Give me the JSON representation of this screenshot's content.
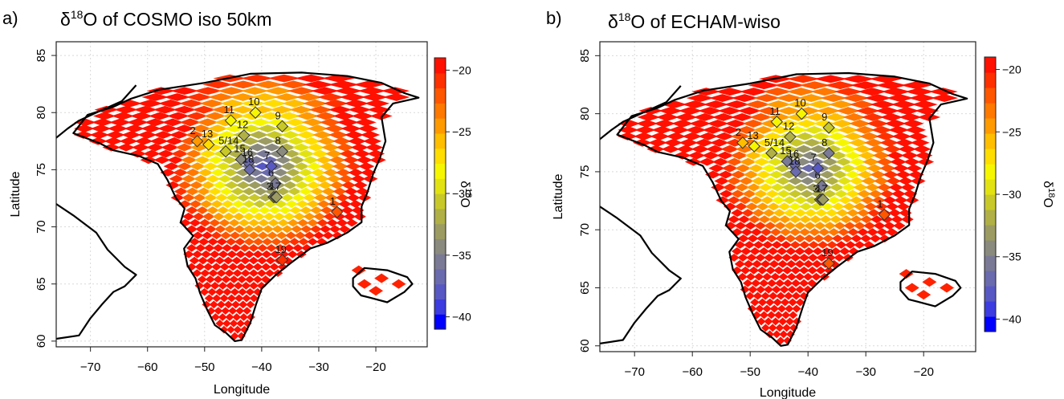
{
  "panels": [
    {
      "id": "a",
      "letter": "a)",
      "title_prefix": "δ",
      "title_sup": "18",
      "title_rest": "O of COSMO  iso  50km"
    },
    {
      "id": "b",
      "letter": "b)",
      "title_prefix": "δ",
      "title_sup": "18",
      "title_rest": "O of ECHAM-wiso"
    }
  ],
  "axes": {
    "xlabel": "Longitude",
    "ylabel": "Latitude",
    "x_ticks": [
      -70,
      -60,
      -50,
      -40,
      -30,
      -20
    ],
    "y_ticks": [
      60,
      65,
      70,
      75,
      80,
      85
    ],
    "xlim": [
      -76,
      -11
    ],
    "ylim": [
      59.5,
      86.2
    ],
    "grid": true
  },
  "colorbar": {
    "label_prefix": "δ",
    "label_sup": "18",
    "label_rest": "O",
    "ticks": [
      -20,
      -25,
      -30,
      -35,
      -40
    ],
    "range": [
      -41,
      -19
    ],
    "colors": [
      "#0000ff",
      "#3c3ce0",
      "#5858c4",
      "#6a6aae",
      "#7a7a96",
      "#8a8a7e",
      "#9c9c62",
      "#b0b046",
      "#c8c82a",
      "#e2e212",
      "#f6f600",
      "#ffdd00",
      "#ffbe00",
      "#ff9a00",
      "#ff7800",
      "#ff5600",
      "#ff3000",
      "#ff1000"
    ]
  },
  "sites": [
    {
      "label": "1",
      "lon": -26.8,
      "lat": 71.3
    },
    {
      "label": "2",
      "lon": -51.3,
      "lat": 77.5
    },
    {
      "label": "3",
      "lon": -37.9,
      "lat": 72.6
    },
    {
      "label": "4",
      "lon": -37.6,
      "lat": 72.6
    },
    {
      "label": "5/14",
      "lon": -46.3,
      "lat": 76.6
    },
    {
      "label": "6",
      "lon": -37.6,
      "lat": 73.8
    },
    {
      "label": "7",
      "lon": -38.3,
      "lat": 75.3
    },
    {
      "label": "8",
      "lon": -36.4,
      "lat": 76.6
    },
    {
      "label": "9",
      "lon": -36.4,
      "lat": 78.8
    },
    {
      "label": "10",
      "lon": -41.1,
      "lat": 80.0
    },
    {
      "label": "11",
      "lon": -45.4,
      "lat": 79.3
    },
    {
      "label": "12",
      "lon": -43.1,
      "lat": 78.0
    },
    {
      "label": "13",
      "lon": -49.3,
      "lat": 77.2
    },
    {
      "label": "15",
      "lon": -43.6,
      "lat": 75.9
    },
    {
      "label": "16",
      "lon": -42.3,
      "lat": 75.6
    },
    {
      "label": "17",
      "lon": -37.4,
      "lat": 72.6
    },
    {
      "label": "18",
      "lon": -42.1,
      "lat": 75.0
    },
    {
      "label": "19",
      "lon": -36.4,
      "lat": 67.1
    }
  ]
}
